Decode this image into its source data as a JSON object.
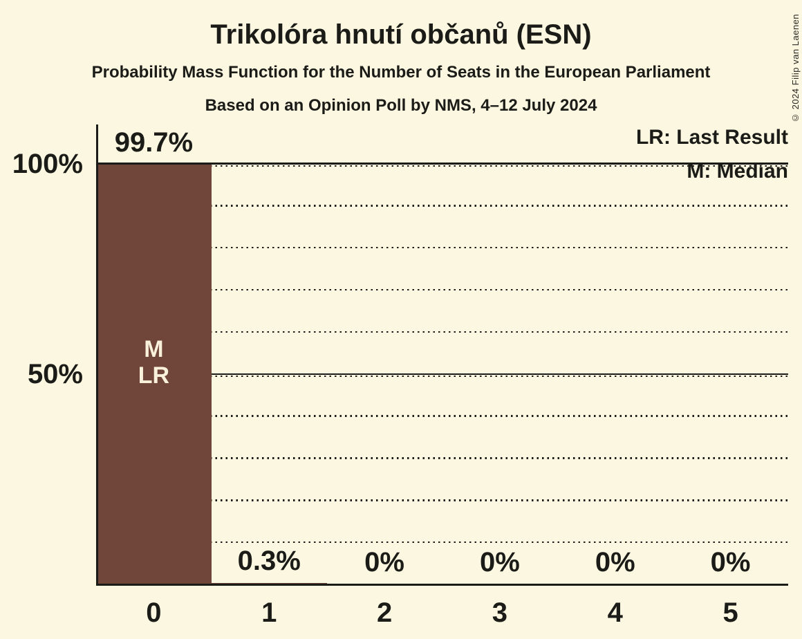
{
  "title": "Trikolóra hnutí občanů (ESN)",
  "subtitle": "Probability Mass Function for the Number of Seats in the European Parliament",
  "poll_info": "Based on an Opinion Poll by NMS, 4–12 July 2024",
  "copyright": "© 2024 Filip van Laenen",
  "legend": {
    "lr": "LR: Last Result",
    "m": "M: Median"
  },
  "y_axis": {
    "labels": [
      "100%",
      "50%"
    ]
  },
  "annotations": {
    "median": "M",
    "last_result": "LR"
  },
  "colors": {
    "background": "#FCF7E1",
    "bar": "#70463A",
    "ink": "#1B1B17",
    "bar_label": "#F9F1DC"
  },
  "chart_data": {
    "type": "bar",
    "title": "Trikolóra hnutí občanů (ESN)",
    "categories": [
      "0",
      "1",
      "2",
      "3",
      "4",
      "5"
    ],
    "values": [
      99.7,
      0.3,
      0,
      0,
      0,
      0
    ],
    "value_labels": [
      "99.7%",
      "0.3%",
      "0%",
      "0%",
      "0%",
      "0%"
    ],
    "xlabel": "",
    "ylabel": "",
    "ylim": [
      0,
      100
    ],
    "dotted_gridlines_pct": [
      10,
      20,
      30,
      40,
      60,
      70,
      80,
      90
    ],
    "solid_gridlines_pct": [
      50,
      100
    ],
    "median_category": "0",
    "last_result_category": "0",
    "legend_position": "top-right",
    "grid": true
  }
}
